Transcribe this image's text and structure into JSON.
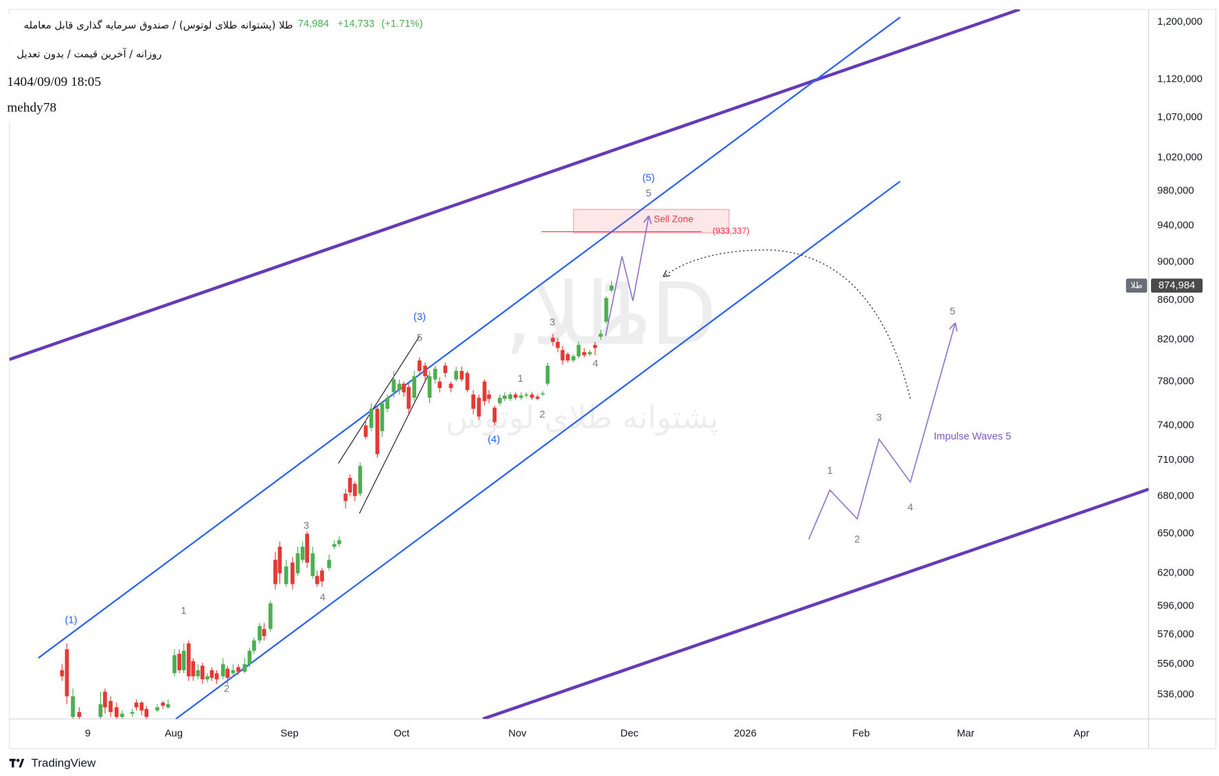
{
  "header": {
    "title": "طلا (پشتوانه طلای لوتوس) / صندوق سرمایه گذاری قابل معامله",
    "change": "+14,733",
    "change_pct": "(+1.71%)",
    "subtitle": "روزانه / آخرین قیمت / بدون تعدیل",
    "datetime": "1404/09/09 18:05",
    "author": "mehdy78"
  },
  "watermark": {
    "symbol": "طلا,",
    "interval": "1D",
    "description": "پشتوانه طلای لوتوس"
  },
  "chart_data": {
    "type": "candlestick",
    "up_color": "#4caf50",
    "down_color": "#e53935",
    "log_scale": true,
    "grid": false,
    "x": [
      15.1,
      16.4,
      18.0,
      19.7,
      25.4,
      26.6,
      28.1,
      29.7,
      31.2,
      33.9,
      35.0,
      36.4,
      37.7,
      40.6,
      42.1,
      43.5,
      45.2,
      46.5,
      47.7,
      49.0,
      50.2,
      51.5,
      52.7,
      54.0,
      55.2,
      56.5,
      58.2,
      59.4,
      60.9,
      62.3,
      64.0,
      65.3,
      66.5,
      68.0,
      69.2,
      70.9,
      72.2,
      73.4,
      75.1,
      76.8,
      78.2,
      79.5,
      80.7,
      82.2,
      83.4,
      84.7,
      86.6,
      88.0,
      89.3,
      91.0,
      92.2,
      93.5,
      94.9,
      96.4,
      97.9,
      99.5,
      100.8,
      102.2,
      103.9,
      105.4,
      106.6,
      107.9,
      109.4,
      110.8,
      112.3,
      113.5,
      115.0,
      116.2,
      117.7,
      119.2,
      120.6,
      122.1,
      123.6,
      125.2,
      126.7,
      128.2,
      129.4,
      130.9,
      132.3,
      133.6,
      135.1,
      136.5,
      138.0,
      139.4,
      140.9,
      142.4,
      143.8,
      145.1,
      146.5,
      147.8,
      149.1,
      150.5,
      152.0,
      153.4,
      154.9,
      156.4,
      157.8,
      159.3,
      160.8,
      162.2
    ],
    "open": [
      552000,
      566000,
      522000,
      525000,
      522000,
      538000,
      532000,
      528000,
      522000,
      524000,
      531000,
      531000,
      527000,
      526000,
      531000,
      528000,
      550000,
      563000,
      552000,
      570000,
      558000,
      548000,
      555000,
      546000,
      552000,
      550000,
      548000,
      553000,
      550000,
      554000,
      551000,
      556000,
      565000,
      572000,
      580000,
      580000,
      630000,
      640000,
      612000,
      628000,
      620000,
      630000,
      650000,
      618000,
      618000,
      622000,
      624000,
      640000,
      642000,
      682000,
      695000,
      690000,
      682000,
      740000,
      738000,
      755000,
      735000,
      755000,
      770000,
      772000,
      778000,
      775000,
      765000,
      800000,
      795000,
      765000,
      782000,
      780000,
      795000,
      778000,
      782000,
      790000,
      788000,
      768000,
      765000,
      780000,
      768000,
      756000,
      760000,
      764000,
      764000,
      768000,
      765000,
      767000,
      768000,
      766000,
      768000,
      778000,
      822000,
      818000,
      810000,
      806000,
      800000,
      804000,
      808000,
      806000,
      815000,
      823000,
      838000,
      870000
    ],
    "high": [
      556000,
      570000,
      540000,
      528000,
      538000,
      540000,
      535000,
      531000,
      526000,
      527000,
      533000,
      532000,
      529000,
      530000,
      532000,
      533000,
      566000,
      566000,
      570000,
      572000,
      560000,
      556000,
      557000,
      550000,
      554000,
      552000,
      560000,
      555000,
      556000,
      556000,
      560000,
      567000,
      574000,
      584000,
      584000,
      600000,
      636000,
      644000,
      630000,
      632000,
      640000,
      644000,
      652000,
      640000,
      622000,
      624000,
      634000,
      645000,
      648000,
      686000,
      698000,
      692000,
      708000,
      745000,
      760000,
      758000,
      762000,
      768000,
      790000,
      782000,
      780000,
      778000,
      790000,
      803000,
      798000,
      790000,
      795000,
      784000,
      798000,
      780000,
      794000,
      794000,
      790000,
      772000,
      768000,
      782000,
      772000,
      758000,
      768000,
      770000,
      770000,
      770000,
      770000,
      770000,
      770000,
      768000,
      771000,
      798000,
      826000,
      822000,
      814000,
      808000,
      806000,
      818000,
      812000,
      810000,
      818000,
      830000,
      864000,
      880000
    ],
    "low": [
      545000,
      530000,
      520000,
      520000,
      520000,
      524000,
      522000,
      520000,
      520000,
      522000,
      526000,
      523000,
      520000,
      525000,
      527000,
      527000,
      548000,
      550000,
      550000,
      545000,
      545000,
      546000,
      543000,
      544000,
      545000,
      543000,
      546000,
      543000,
      548000,
      549000,
      550000,
      554000,
      563000,
      570000,
      572000,
      578000,
      608000,
      612000,
      610000,
      608000,
      618000,
      628000,
      624000,
      616000,
      610000,
      610000,
      622000,
      638000,
      640000,
      670000,
      680000,
      676000,
      680000,
      728000,
      735000,
      712000,
      730000,
      752000,
      765000,
      768000,
      766000,
      750000,
      762000,
      786000,
      780000,
      760000,
      778000,
      770000,
      784000,
      770000,
      780000,
      780000,
      770000,
      750000,
      745000,
      758000,
      760000,
      740000,
      758000,
      762000,
      762000,
      763000,
      763000,
      765000,
      763000,
      763000,
      767000,
      776000,
      814000,
      808000,
      796000,
      798000,
      798000,
      802000,
      803000,
      804000,
      805000,
      820000,
      836000,
      868000
    ],
    "close": [
      548000,
      535000,
      535000,
      522000,
      530000,
      528000,
      525000,
      522000,
      524000,
      525000,
      528000,
      526000,
      522000,
      528000,
      529000,
      530000,
      562000,
      552000,
      565000,
      548000,
      548000,
      552000,
      546000,
      548000,
      547000,
      546000,
      556000,
      547000,
      552000,
      551000,
      556000,
      565000,
      572000,
      582000,
      575000,
      598000,
      612000,
      620000,
      625000,
      612000,
      635000,
      640000,
      628000,
      635000,
      612000,
      614000,
      630000,
      642000,
      645000,
      676000,
      683000,
      680000,
      705000,
      730000,
      755000,
      715000,
      760000,
      765000,
      782000,
      778000,
      770000,
      755000,
      785000,
      790000,
      785000,
      785000,
      792000,
      774000,
      788000,
      774000,
      790000,
      782000,
      772000,
      755000,
      748000,
      762000,
      764000,
      743000,
      765000,
      767000,
      768000,
      765000,
      767000,
      768000,
      765000,
      764000,
      769000,
      795000,
      818000,
      812000,
      800000,
      800000,
      804000,
      815000,
      805000,
      808000,
      812000,
      826000,
      862000,
      874984
    ],
    "xlim": [
      1,
      306
    ],
    "xticks": [
      {
        "value": 22,
        "label": "9"
      },
      {
        "value": 45,
        "label": "Aug"
      },
      {
        "value": 76,
        "label": "Sep"
      },
      {
        "value": 106,
        "label": "Oct"
      },
      {
        "value": 137,
        "label": "Nov"
      },
      {
        "value": 167,
        "label": "Dec"
      },
      {
        "value": 198,
        "label": "2026"
      },
      {
        "value": 229,
        "label": "Feb"
      },
      {
        "value": 257,
        "label": "Mar"
      },
      {
        "value": 288,
        "label": "Apr"
      }
    ],
    "ylim": [
      520700,
      1218100
    ],
    "yticks": [
      {
        "value": 536000,
        "label": "536,000"
      },
      {
        "value": 556000,
        "label": "556,000"
      },
      {
        "value": 576000,
        "label": "576,000"
      },
      {
        "value": 596000,
        "label": "596,000"
      },
      {
        "value": 620000,
        "label": "620,000"
      },
      {
        "value": 650000,
        "label": "650,000"
      },
      {
        "value": 680000,
        "label": "680,000"
      },
      {
        "value": 710000,
        "label": "710,000"
      },
      {
        "value": 740000,
        "label": "740,000"
      },
      {
        "value": 780000,
        "label": "780,000"
      },
      {
        "value": 820000,
        "label": "820,000"
      },
      {
        "value": 860000,
        "label": "860,000"
      },
      {
        "value": 900000,
        "label": "900,000"
      },
      {
        "value": 940000,
        "label": "940,000"
      },
      {
        "value": 980000,
        "label": "980,000"
      },
      {
        "value": 1020000,
        "label": "1,020,000"
      },
      {
        "value": 1070000,
        "label": "1,070,000"
      },
      {
        "value": 1120000,
        "label": "1,120,000"
      },
      {
        "value": 1200000,
        "label": "1,200,000"
      }
    ],
    "last_price": {
      "value": 874984,
      "label": "874,984"
    },
    "symbol_tag": "طلا",
    "annotations": {
      "waves": [
        "(1)",
        "(3)",
        "(4)",
        "(5)",
        "1",
        "2",
        "3",
        "4",
        "5",
        "1",
        "2",
        "3",
        "4",
        "5",
        "1",
        "2",
        "3",
        "4",
        "5"
      ],
      "sell_zone": "Sell Zone",
      "sell_level": {
        "value": 933337,
        "label": "(933,337)"
      },
      "impulse": "Impulse Waves 5"
    }
  },
  "footer": {
    "logo": "TradingView"
  }
}
